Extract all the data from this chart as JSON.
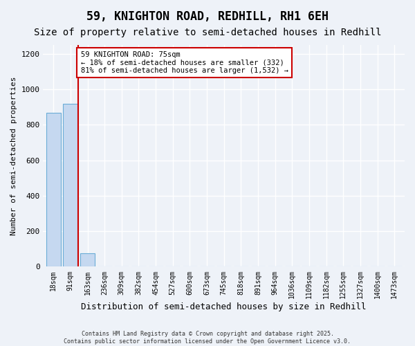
{
  "title": "59, KNIGHTON ROAD, REDHILL, RH1 6EH",
  "subtitle": "Size of property relative to semi-detached houses in Redhill",
  "xlabel": "Distribution of semi-detached houses by size in Redhill",
  "ylabel": "Number of semi-detached properties",
  "bin_labels": [
    "18sqm",
    "91sqm",
    "163sqm",
    "236sqm",
    "309sqm",
    "382sqm",
    "454sqm",
    "527sqm",
    "600sqm",
    "673sqm",
    "745sqm",
    "818sqm",
    "891sqm",
    "964sqm",
    "1036sqm",
    "1109sqm",
    "1182sqm",
    "1255sqm",
    "1327sqm",
    "1400sqm",
    "1473sqm"
  ],
  "bar_values": [
    868,
    920,
    75,
    0,
    0,
    0,
    0,
    0,
    0,
    0,
    0,
    0,
    0,
    0,
    0,
    0,
    0,
    0,
    0,
    0,
    0
  ],
  "bar_color": "#c5d8f0",
  "bar_edge_color": "#6aacd6",
  "property_line_x": 1.45,
  "property_line_color": "#cc0000",
  "annotation_title": "59 KNIGHTON ROAD: 75sqm",
  "annotation_line1": "← 18% of semi-detached houses are smaller (332)",
  "annotation_line2": "81% of semi-detached houses are larger (1,532) →",
  "annotation_box_color": "#ffffff",
  "annotation_box_edge_color": "#cc0000",
  "ylim": [
    0,
    1250
  ],
  "yticks": [
    0,
    200,
    400,
    600,
    800,
    1000,
    1200
  ],
  "footer_line1": "Contains HM Land Registry data © Crown copyright and database right 2025.",
  "footer_line2": "Contains public sector information licensed under the Open Government Licence v3.0.",
  "background_color": "#eef2f8",
  "plot_bg_color": "#eef2f8",
  "title_fontsize": 12,
  "subtitle_fontsize": 10,
  "grid_color": "#ffffff",
  "annotation_fontsize": 7.5,
  "ylabel_fontsize": 8,
  "xlabel_fontsize": 9,
  "tick_fontsize": 7
}
